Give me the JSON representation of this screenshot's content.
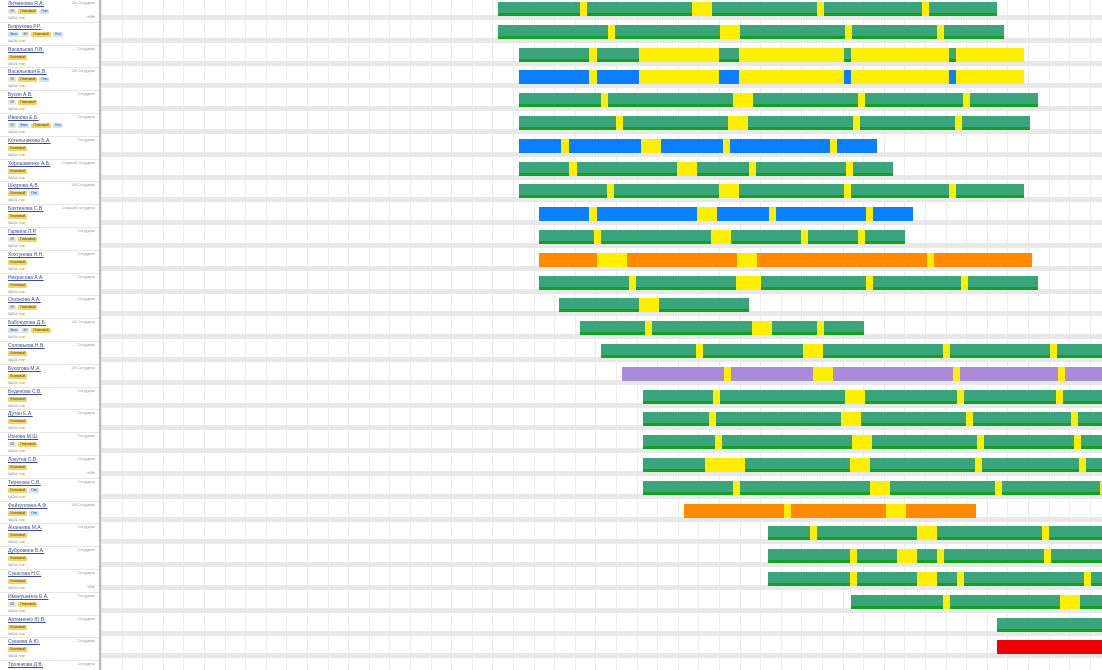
{
  "sidebar": {
    "employees": [
      {
        "name": "Литвинова Я.А.",
        "note": "2/6 Сотрудник",
        "badges": [
          "ЗП",
          "Плановый",
          "Плн"
        ],
        "stat": "ЧАСЫ",
        "stat_hi": "план",
        "extra": "+0%"
      },
      {
        "name": "Безрукова Р.Р.",
        "note": "",
        "badges": [
          "Фикс",
          "ЗП",
          "Плановый",
          "Плн"
        ],
        "stat": "ЧАСЫ",
        "stat_hi": "план",
        "extra": ""
      },
      {
        "name": "Васильева Л.В.",
        "note": "Сотрудник",
        "badges": [
          "Плановый"
        ],
        "stat": "ЧАСЫ",
        "stat_hi": "план",
        "extra": ""
      },
      {
        "name": "Васильевая Е.В.",
        "note": "2/6 Сотрудник",
        "badges": [
          "ЗП",
          "Плановый",
          "Плн"
        ],
        "stat": "ЧАСЫ",
        "stat_hi": "план",
        "extra": ""
      },
      {
        "name": "Бусин А.В.",
        "note": "Сотрудник",
        "badges": [
          "ЗП",
          "Плановый"
        ],
        "stat": "ЧАСЫ",
        "stat_hi": "план",
        "extra": ""
      },
      {
        "name": "Иванова Е.Б.",
        "note": "Сотрудник",
        "badges": [
          "ЗП",
          "Фикс",
          "Плановый",
          "Плн"
        ],
        "stat": "ЧАСЫ",
        "stat_hi": "план",
        "extra": ""
      },
      {
        "name": "Котельникова Б.А.",
        "note": "Сотрудник",
        "badges": [
          "Плановый"
        ],
        "stat": "ЧАСЫ",
        "stat_hi": "план",
        "extra": ""
      },
      {
        "name": "Хорошавенко А.Б.",
        "note": "Старший сотрудник",
        "badges": [
          "Плановый"
        ],
        "stat": "ЧАСЫ",
        "stat_hi": "план",
        "extra": ""
      },
      {
        "name": "Шкурова А.В.",
        "note": "2/6 Сотрудник",
        "badges": [
          "Плановый",
          "Плн"
        ],
        "stat": "ЧАСЫ",
        "stat_hi": "план",
        "extra": ""
      },
      {
        "name": "Бахтинова С.В.",
        "note": "Старший сотрудник",
        "badges": [
          "Плановый"
        ],
        "stat": "ЧАСЫ",
        "stat_hi": "план",
        "extra": ""
      },
      {
        "name": "Гаркина Л.Р.",
        "note": "Сотрудник",
        "badges": [
          "ЗП",
          "Плановый"
        ],
        "stat": "ЧАСЫ",
        "stat_hi": "план",
        "extra": ""
      },
      {
        "name": "Хохтунова Н.Н.",
        "note": "Сотрудник",
        "badges": [
          "Плановый"
        ],
        "stat": "ЧАСЫ",
        "stat_hi": "план",
        "extra": ""
      },
      {
        "name": "Некрасова А.А.",
        "note": "Сотрудник",
        "badges": [
          "Плановый"
        ],
        "stat": "ЧАСЫ",
        "stat_hi": "план",
        "extra": ""
      },
      {
        "name": "Оскокова А.А.",
        "note": "Сотрудник",
        "badges": [
          "ЗП",
          "Плановый"
        ],
        "stat": "ЧАСЫ",
        "stat_hi": "план",
        "extra": ""
      },
      {
        "name": "Бабокурова Д.Б.",
        "note": "2/6 Сотрудник",
        "badges": [
          "Фикс",
          "ЗП",
          "Плановый"
        ],
        "stat": "ЧАСЫ",
        "stat_hi": "план",
        "extra": ""
      },
      {
        "name": "Соловьева Н.В.",
        "note": "Сотрудник",
        "badges": [
          "Плановый"
        ],
        "stat": "ЧАСЫ",
        "stat_hi": "план",
        "extra": ""
      },
      {
        "name": "Букатова М.А.",
        "note": "2/6 Сотрудник",
        "badges": [
          "Плановый"
        ],
        "stat": "ЧАСЫ",
        "stat_hi": "план",
        "extra": ""
      },
      {
        "name": "Беденова С.В.",
        "note": "Сотрудник",
        "badges": [
          "Плановый"
        ],
        "stat": "ЧАСЫ",
        "stat_hi": "план",
        "extra": ""
      },
      {
        "name": "Дутан Е.А.",
        "note": "Сотрудник",
        "badges": [
          "Плановый"
        ],
        "stat": "ЧАСЫ",
        "stat_hi": "план",
        "extra": ""
      },
      {
        "name": "Ионова М.Ш.",
        "note": "Сотрудник",
        "badges": [
          "ЗП",
          "Плановый"
        ],
        "stat": "ЧАСЫ",
        "stat_hi": "план",
        "extra": ""
      },
      {
        "name": "Локутов С.В.",
        "note": "Сотрудник",
        "badges": [
          "Плановый"
        ],
        "stat": "ЧАСЫ",
        "stat_hi": "план",
        "extra": "+0%"
      },
      {
        "name": "Терехова С.В.",
        "note": "Сотрудник",
        "badges": [
          "Плановый",
          "Плн"
        ],
        "stat": "ЧАСЫ",
        "stat_hi": "план",
        "extra": ""
      },
      {
        "name": "Файзуллина А.Ф.",
        "note": "2/6 Сотрудник",
        "badges": [
          "Плановый",
          "Плн"
        ],
        "stat": "ЧАСЫ",
        "stat_hi": "план",
        "extra": ""
      },
      {
        "name": "Ананьева М.А.",
        "note": "Сотрудник",
        "badges": [
          "Плановый"
        ],
        "stat": "ЧАСЫ",
        "stat_hi": "план",
        "extra": ""
      },
      {
        "name": "Дубровина В.А.",
        "note": "Сотрудник",
        "badges": [
          "Плановый"
        ],
        "stat": "ЧАСЫ",
        "stat_hi": "план",
        "extra": ""
      },
      {
        "name": "Сукасова Н.С.",
        "note": "Сотрудник",
        "badges": [
          "Плановый"
        ],
        "stat": "ЧАСЫ",
        "stat_hi": "план",
        "extra": "+0%"
      },
      {
        "name": "Иманушкина Е.А.",
        "note": "Сотрудник",
        "badges": [
          "ЗП",
          "Плановый"
        ],
        "stat": "ЧАСЫ",
        "stat_hi": "план",
        "extra": ""
      },
      {
        "name": "Артеменко Ю.В.",
        "note": "Сотрудник",
        "badges": [
          "Плановый"
        ],
        "stat": "ЧАСЫ",
        "stat_hi": "план",
        "extra": ""
      },
      {
        "name": "Сукаева А.Ю.",
        "note": "Сотрудник",
        "badges": [
          "Плановый"
        ],
        "stat": "ЧАСЫ",
        "stat_hi": "план",
        "extra": ""
      },
      {
        "name": "Троянкова Д.В.",
        "note": "Сотрудник",
        "badges": [
          "Плановый"
        ],
        "stat": "ЧАСЫ",
        "stat_hi": "план",
        "extra": ""
      }
    ]
  },
  "colors": {
    "green": "#3aa57a",
    "blue": "#0a7fff",
    "yellow": "#ffee00",
    "orange": "#ff8a00",
    "purple": "#a98bd8",
    "pink": "#e0a7bf",
    "red": "#ee0000",
    "darkgreen": "#14a020"
  }
}
